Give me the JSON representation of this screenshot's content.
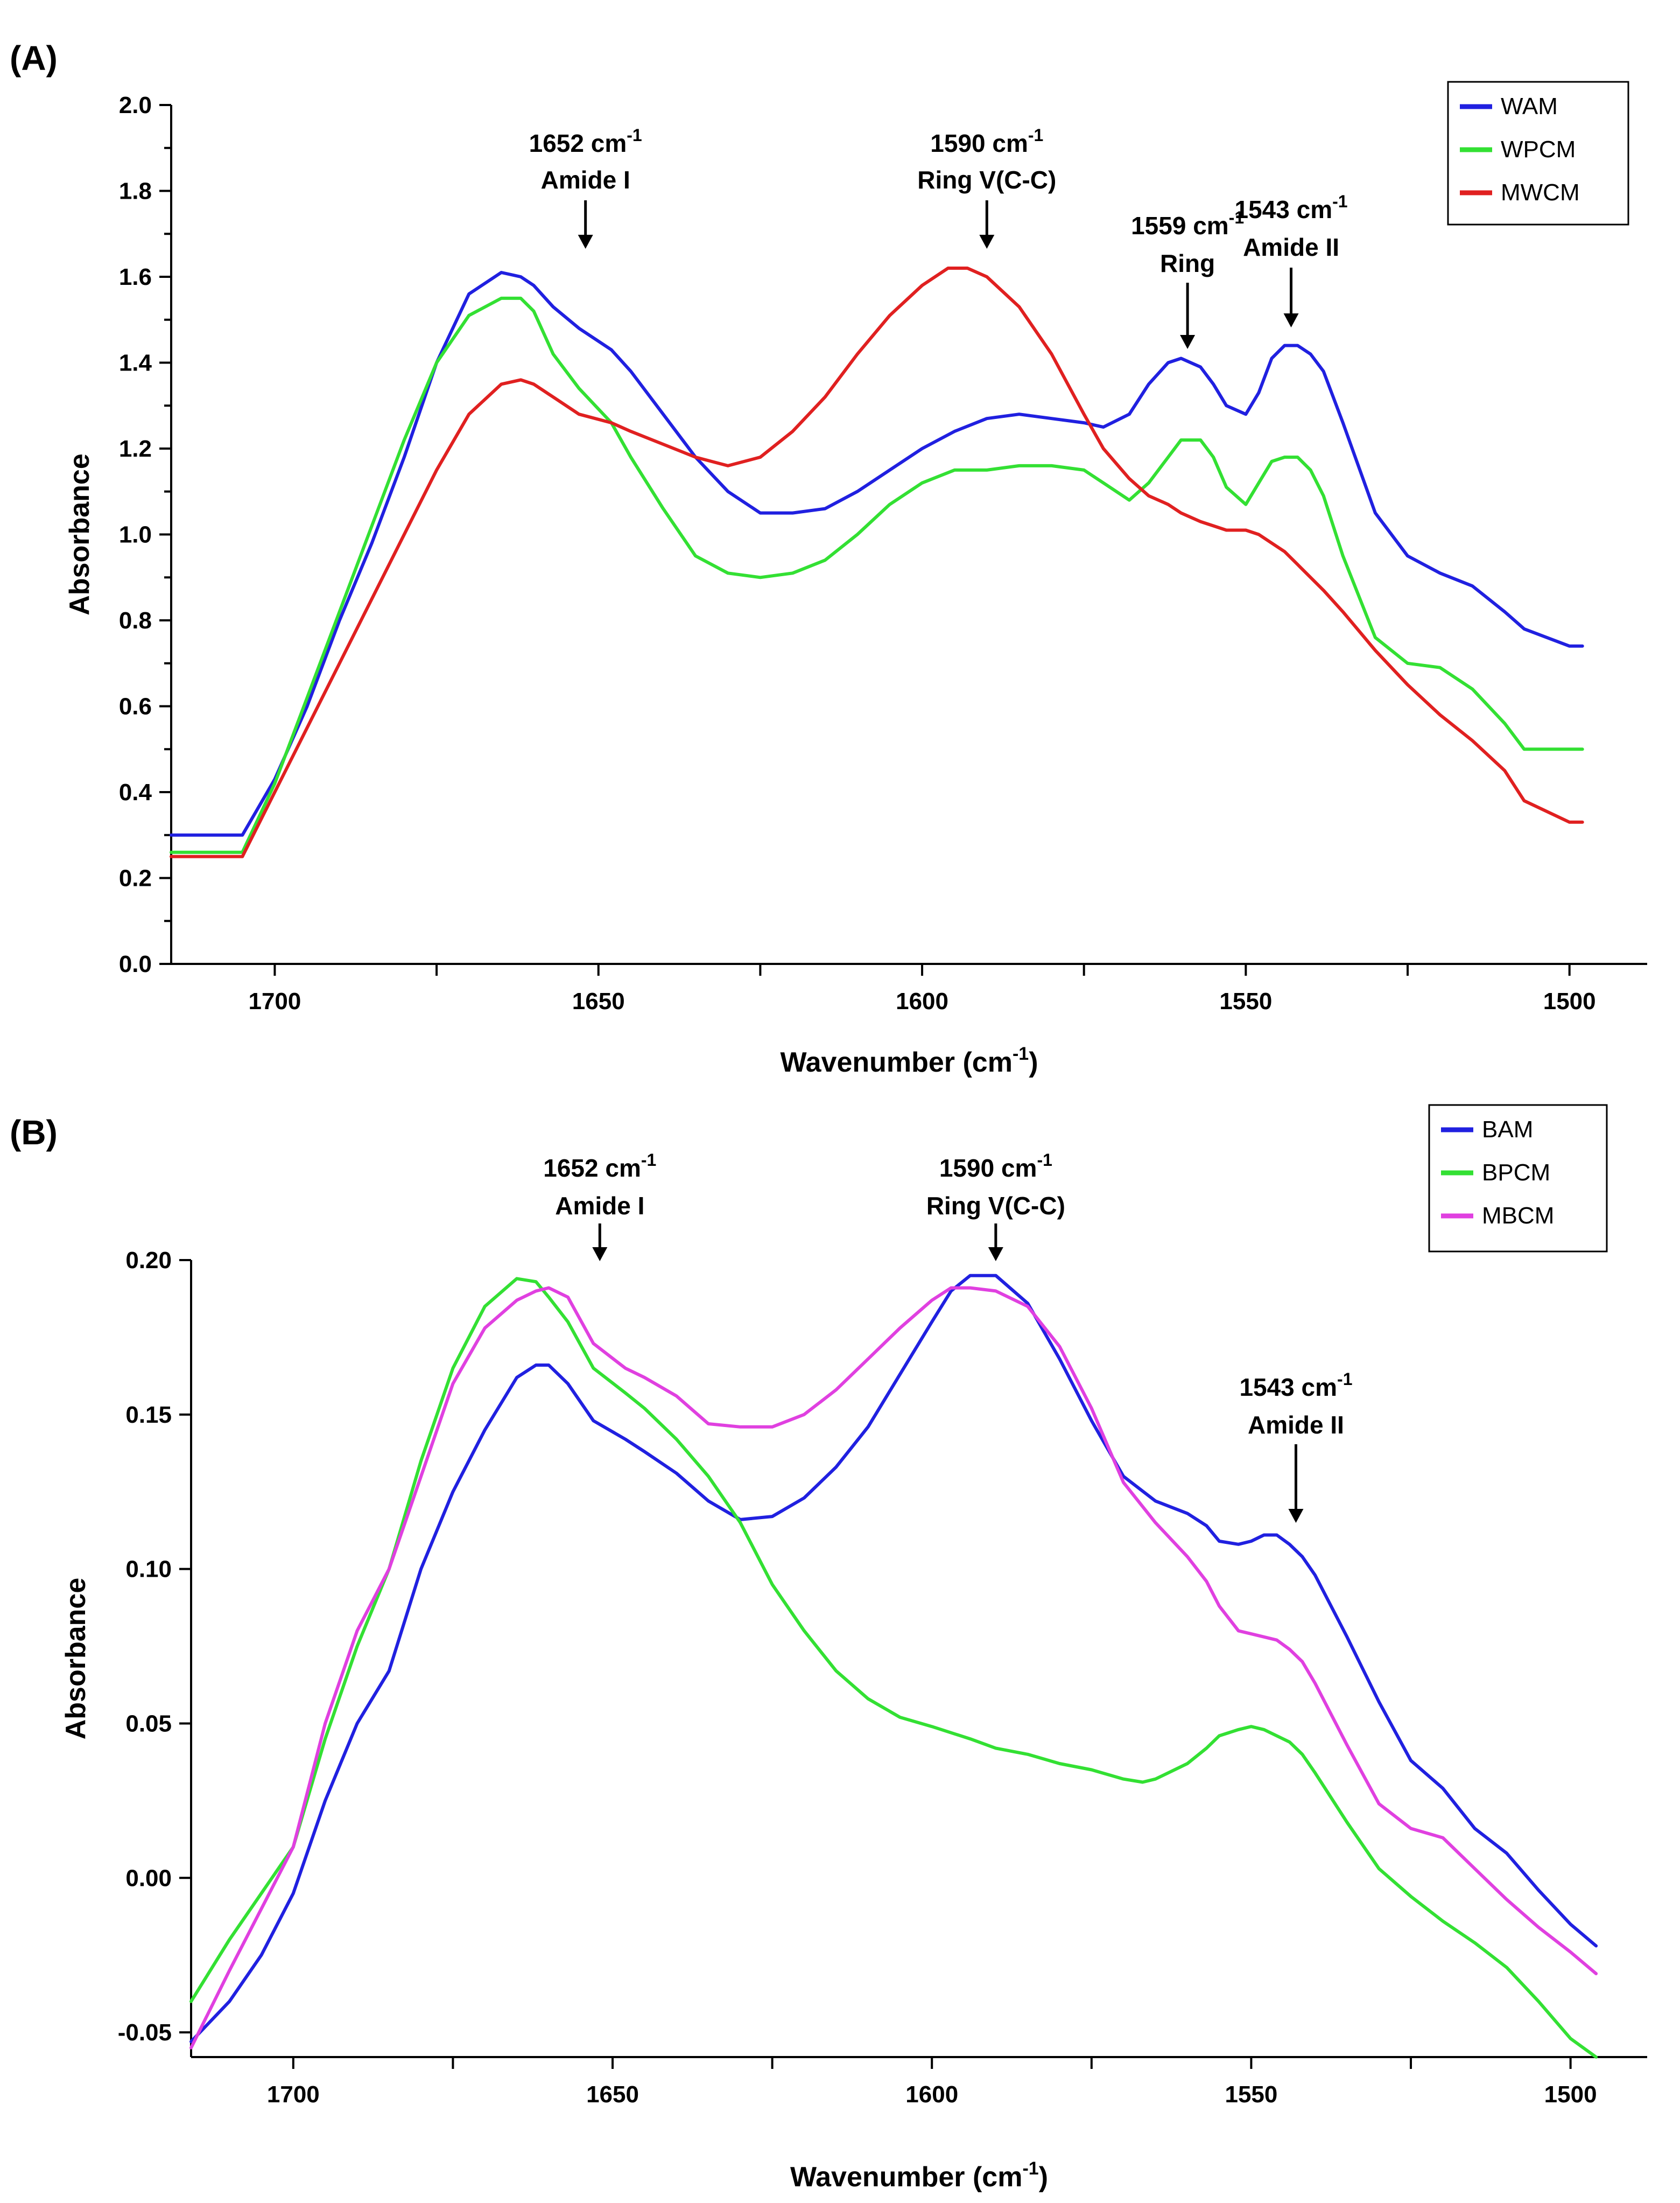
{
  "chart_data": [
    {
      "panel": "(A)",
      "type": "line",
      "xlabel": "Wavenumber (cm-1)",
      "xlabel_main": "Wavenumber (cm",
      "xlabel_sup": "-1",
      "xlabel_close": ")",
      "ylabel": "Absorbance",
      "xlim": [
        1716,
        1488
      ],
      "ylim": [
        0.0,
        2.0
      ],
      "x_ticks": [
        1700,
        1650,
        1600,
        1550,
        1500
      ],
      "x_tick_labels": [
        "1700",
        "1650",
        "1600",
        "1550",
        "1500"
      ],
      "y_ticks": [
        0.0,
        0.2,
        0.4,
        0.6,
        0.8,
        1.0,
        1.2,
        1.4,
        1.6,
        1.8,
        2.0
      ],
      "y_tick_labels": [
        "0.0",
        "0.2",
        "0.4",
        "0.6",
        "0.8",
        "1.0",
        "1.2",
        "1.4",
        "1.6",
        "1.8",
        "2.0"
      ],
      "legend_position": "top-right",
      "series": [
        {
          "name": "WAM",
          "color": "#2020e0",
          "x": [
            1716,
            1705,
            1700,
            1695,
            1690,
            1685,
            1680,
            1675,
            1670,
            1665,
            1662,
            1660,
            1657,
            1653,
            1648,
            1645,
            1640,
            1635,
            1630,
            1625,
            1620,
            1615,
            1610,
            1605,
            1600,
            1595,
            1590,
            1585,
            1580,
            1575,
            1572,
            1568,
            1565,
            1562,
            1560,
            1557,
            1555,
            1553,
            1550,
            1548,
            1546,
            1544,
            1542,
            1540,
            1538,
            1535,
            1530,
            1525,
            1520,
            1515,
            1510,
            1507,
            1500,
            1498
          ],
          "y": [
            0.3,
            0.3,
            0.43,
            0.6,
            0.8,
            0.98,
            1.18,
            1.4,
            1.56,
            1.61,
            1.6,
            1.58,
            1.53,
            1.48,
            1.43,
            1.38,
            1.28,
            1.18,
            1.1,
            1.05,
            1.05,
            1.06,
            1.1,
            1.15,
            1.2,
            1.24,
            1.27,
            1.28,
            1.27,
            1.26,
            1.25,
            1.28,
            1.35,
            1.4,
            1.41,
            1.39,
            1.35,
            1.3,
            1.28,
            1.33,
            1.41,
            1.44,
            1.44,
            1.42,
            1.38,
            1.26,
            1.05,
            0.95,
            0.91,
            0.88,
            0.82,
            0.78,
            0.74,
            0.74
          ]
        },
        {
          "name": "WPCM",
          "color": "#33e033",
          "x": [
            1716,
            1705,
            1700,
            1695,
            1690,
            1685,
            1680,
            1675,
            1670,
            1665,
            1662,
            1660,
            1657,
            1653,
            1648,
            1645,
            1640,
            1635,
            1630,
            1625,
            1620,
            1615,
            1610,
            1605,
            1600,
            1595,
            1590,
            1585,
            1580,
            1575,
            1572,
            1568,
            1565,
            1562,
            1560,
            1557,
            1555,
            1553,
            1550,
            1548,
            1546,
            1544,
            1542,
            1540,
            1538,
            1535,
            1530,
            1525,
            1520,
            1515,
            1510,
            1507,
            1500,
            1498
          ],
          "y": [
            0.26,
            0.26,
            0.42,
            0.62,
            0.82,
            1.02,
            1.22,
            1.4,
            1.51,
            1.55,
            1.55,
            1.52,
            1.42,
            1.34,
            1.26,
            1.18,
            1.06,
            0.95,
            0.91,
            0.9,
            0.91,
            0.94,
            1.0,
            1.07,
            1.12,
            1.15,
            1.15,
            1.16,
            1.16,
            1.15,
            1.12,
            1.08,
            1.12,
            1.18,
            1.22,
            1.22,
            1.18,
            1.11,
            1.07,
            1.12,
            1.17,
            1.18,
            1.18,
            1.15,
            1.09,
            0.95,
            0.76,
            0.7,
            0.69,
            0.64,
            0.56,
            0.5,
            0.5,
            0.5
          ]
        },
        {
          "name": "MWCM",
          "color": "#e02020",
          "x": [
            1716,
            1705,
            1700,
            1695,
            1690,
            1685,
            1680,
            1675,
            1670,
            1665,
            1662,
            1660,
            1657,
            1653,
            1648,
            1645,
            1640,
            1635,
            1630,
            1625,
            1620,
            1615,
            1610,
            1605,
            1600,
            1596,
            1593,
            1590,
            1585,
            1580,
            1575,
            1572,
            1568,
            1565,
            1562,
            1560,
            1557,
            1555,
            1553,
            1550,
            1548,
            1546,
            1544,
            1542,
            1540,
            1538,
            1535,
            1530,
            1525,
            1520,
            1515,
            1510,
            1507,
            1500,
            1498
          ],
          "y": [
            0.25,
            0.25,
            0.4,
            0.55,
            0.7,
            0.85,
            1.0,
            1.15,
            1.28,
            1.35,
            1.36,
            1.35,
            1.32,
            1.28,
            1.26,
            1.24,
            1.21,
            1.18,
            1.16,
            1.18,
            1.24,
            1.32,
            1.42,
            1.51,
            1.58,
            1.62,
            1.62,
            1.6,
            1.53,
            1.42,
            1.28,
            1.2,
            1.13,
            1.09,
            1.07,
            1.05,
            1.03,
            1.02,
            1.01,
            1.01,
            1.0,
            0.98,
            0.96,
            0.93,
            0.9,
            0.87,
            0.82,
            0.73,
            0.65,
            0.58,
            0.52,
            0.45,
            0.38,
            0.33,
            0.33
          ]
        }
      ],
      "annotations": [
        {
          "value": "1652 cm",
          "sup": "-1",
          "label": "Amide I",
          "x": 1652
        },
        {
          "value": "1590 cm",
          "sup": "-1",
          "label": "Ring V(C-C)",
          "x": 1590
        },
        {
          "value": "1559 cm",
          "sup": "-1",
          "label": "Ring",
          "x": 1559
        },
        {
          "value": "1543 cm",
          "sup": "-1",
          "label": "Amide II",
          "x": 1543
        }
      ]
    },
    {
      "panel": "(B)",
      "type": "line",
      "xlabel": "Wavenumber (cm-1)",
      "xlabel_main": "Wavenumber (cm",
      "xlabel_sup": "-1",
      "xlabel_close": ")",
      "ylabel": "Absorbance",
      "xlim": [
        1716,
        1488
      ],
      "ylim": [
        -0.058,
        0.2
      ],
      "x_ticks": [
        1700,
        1650,
        1600,
        1550,
        1500
      ],
      "x_tick_labels": [
        "1700",
        "1650",
        "1600",
        "1550",
        "1500"
      ],
      "y_ticks": [
        -0.05,
        0.0,
        0.05,
        0.1,
        0.15,
        0.2
      ],
      "y_tick_labels": [
        "-0.05",
        "0.00",
        "0.05",
        "0.10",
        "0.15",
        "0.20"
      ],
      "legend_position": "top-right",
      "series": [
        {
          "name": "BAM",
          "color": "#2020e0",
          "x": [
            1716,
            1710,
            1705,
            1700,
            1695,
            1690,
            1685,
            1680,
            1675,
            1670,
            1665,
            1662,
            1660,
            1657,
            1653,
            1648,
            1645,
            1640,
            1635,
            1630,
            1625,
            1620,
            1615,
            1610,
            1605,
            1600,
            1597,
            1594,
            1590,
            1585,
            1580,
            1575,
            1570,
            1565,
            1560,
            1557,
            1555,
            1552,
            1550,
            1548,
            1546,
            1544,
            1542,
            1540,
            1535,
            1530,
            1525,
            1520,
            1515,
            1510,
            1505,
            1500,
            1496
          ],
          "y": [
            -0.053,
            -0.04,
            -0.025,
            -0.005,
            0.025,
            0.05,
            0.067,
            0.1,
            0.125,
            0.145,
            0.162,
            0.166,
            0.166,
            0.16,
            0.148,
            0.142,
            0.138,
            0.131,
            0.122,
            0.116,
            0.117,
            0.123,
            0.133,
            0.146,
            0.163,
            0.18,
            0.19,
            0.195,
            0.195,
            0.186,
            0.168,
            0.148,
            0.13,
            0.122,
            0.118,
            0.114,
            0.109,
            0.108,
            0.109,
            0.111,
            0.111,
            0.108,
            0.104,
            0.098,
            0.078,
            0.057,
            0.038,
            0.029,
            0.016,
            0.008,
            -0.004,
            -0.015,
            -0.022
          ]
        },
        {
          "name": "BPCM",
          "color": "#33e033",
          "x": [
            1716,
            1710,
            1705,
            1700,
            1695,
            1690,
            1685,
            1680,
            1675,
            1670,
            1665,
            1662,
            1660,
            1657,
            1653,
            1648,
            1645,
            1640,
            1635,
            1630,
            1625,
            1620,
            1615,
            1610,
            1605,
            1600,
            1597,
            1594,
            1590,
            1585,
            1580,
            1575,
            1570,
            1567,
            1565,
            1560,
            1557,
            1555,
            1552,
            1550,
            1548,
            1546,
            1544,
            1542,
            1540,
            1535,
            1530,
            1525,
            1520,
            1515,
            1510,
            1505,
            1500,
            1496
          ],
          "y": [
            -0.04,
            -0.02,
            -0.005,
            0.01,
            0.045,
            0.075,
            0.1,
            0.135,
            0.165,
            0.185,
            0.194,
            0.193,
            0.188,
            0.18,
            0.165,
            0.157,
            0.152,
            0.142,
            0.13,
            0.115,
            0.095,
            0.08,
            0.067,
            0.058,
            0.052,
            0.049,
            0.047,
            0.045,
            0.042,
            0.04,
            0.037,
            0.035,
            0.032,
            0.031,
            0.032,
            0.037,
            0.042,
            0.046,
            0.048,
            0.049,
            0.048,
            0.046,
            0.044,
            0.04,
            0.034,
            0.018,
            0.003,
            -0.006,
            -0.014,
            -0.021,
            -0.029,
            -0.04,
            -0.052,
            -0.058
          ]
        },
        {
          "name": "MBCM",
          "color": "#e040e0",
          "x": [
            1716,
            1710,
            1705,
            1700,
            1695,
            1690,
            1685,
            1680,
            1675,
            1670,
            1665,
            1662,
            1660,
            1657,
            1653,
            1648,
            1645,
            1640,
            1635,
            1630,
            1625,
            1620,
            1615,
            1610,
            1605,
            1600,
            1597,
            1594,
            1590,
            1585,
            1580,
            1575,
            1570,
            1565,
            1560,
            1557,
            1555,
            1552,
            1550,
            1548,
            1546,
            1544,
            1542,
            1540,
            1535,
            1530,
            1525,
            1520,
            1515,
            1510,
            1505,
            1500,
            1496
          ],
          "y": [
            -0.055,
            -0.03,
            -0.01,
            0.01,
            0.05,
            0.08,
            0.1,
            0.13,
            0.16,
            0.178,
            0.187,
            0.19,
            0.191,
            0.188,
            0.173,
            0.165,
            0.162,
            0.156,
            0.147,
            0.146,
            0.146,
            0.15,
            0.158,
            0.168,
            0.178,
            0.187,
            0.191,
            0.191,
            0.19,
            0.185,
            0.172,
            0.152,
            0.128,
            0.115,
            0.104,
            0.096,
            0.088,
            0.08,
            0.079,
            0.078,
            0.077,
            0.074,
            0.07,
            0.063,
            0.043,
            0.024,
            0.016,
            0.013,
            0.003,
            -0.007,
            -0.016,
            -0.024,
            -0.031
          ]
        }
      ],
      "annotations": [
        {
          "value": "1652 cm",
          "sup": "-1",
          "label": "Amide I",
          "x": 1652
        },
        {
          "value": "1590 cm",
          "sup": "-1",
          "label": "Ring V(C-C)",
          "x": 1590
        },
        {
          "value": "1543 cm",
          "sup": "-1",
          "label": "Amide II",
          "x": 1543
        }
      ]
    }
  ]
}
